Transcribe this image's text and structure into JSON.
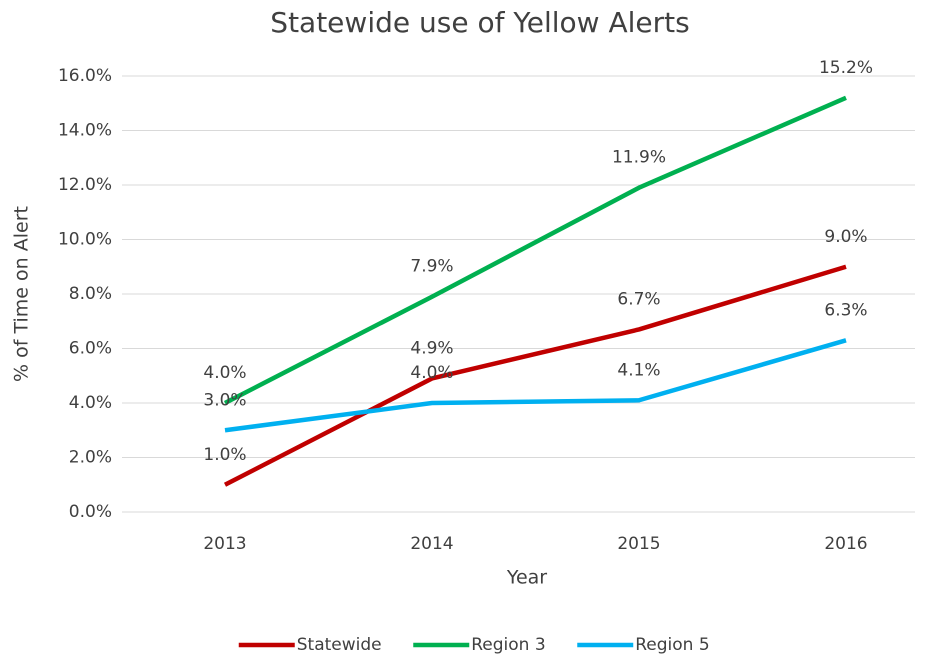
{
  "chart_data": {
    "type": "line",
    "title": "Statewide use of Yellow Alerts",
    "x_label": "Year",
    "y_label": "% of Time on Alert",
    "categories": [
      "2013",
      "2014",
      "2015",
      "2016"
    ],
    "series": [
      {
        "name": "Statewide",
        "color": "#c00000",
        "values": [
          1.0,
          4.9,
          6.7,
          9.0
        ],
        "value_labels": [
          "1.0%",
          "4.9%",
          "6.7%",
          "9.0%"
        ]
      },
      {
        "name": "Region 3",
        "color": "#00b050",
        "values": [
          4.0,
          7.9,
          11.9,
          15.2
        ],
        "value_labels": [
          "4.0%",
          "7.9%",
          "11.9%",
          "15.2%"
        ]
      },
      {
        "name": "Region 5",
        "color": "#00b0f0",
        "values": [
          3.0,
          4.0,
          4.1,
          6.3
        ],
        "value_labels": [
          "3.0%",
          "4.0%",
          "4.1%",
          "6.3%"
        ]
      }
    ],
    "ylim": [
      0,
      16
    ],
    "yticks": [
      {
        "value": 0,
        "label": "0.0%"
      },
      {
        "value": 2,
        "label": "2.0%"
      },
      {
        "value": 4,
        "label": "4.0%"
      },
      {
        "value": 6,
        "label": "6.0%"
      },
      {
        "value": 8,
        "label": "8.0%"
      },
      {
        "value": 10,
        "label": "10.0%"
      },
      {
        "value": 12,
        "label": "12.0%"
      },
      {
        "value": 14,
        "label": "14.0%"
      },
      {
        "value": 16,
        "label": "16.0%"
      }
    ],
    "grid": true,
    "legend": "bottom"
  }
}
